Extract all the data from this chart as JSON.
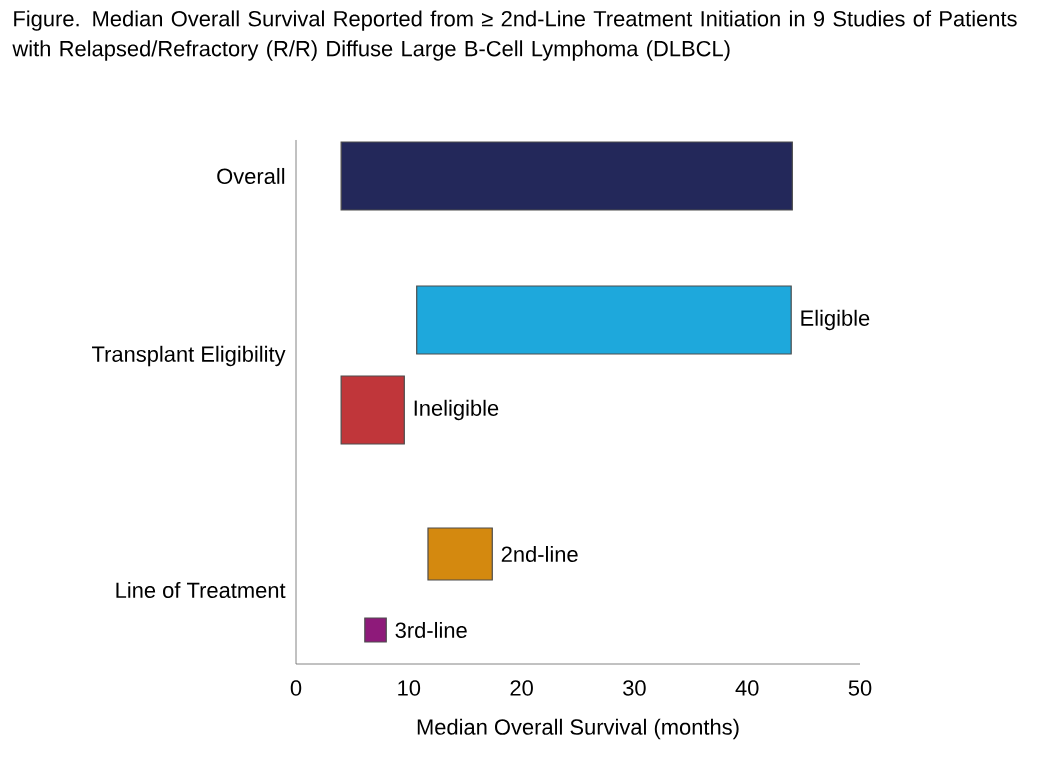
{
  "chart_data": {
    "type": "bar",
    "orientation": "horizontal",
    "title": "Figure. Median Overall Survival Reported from ≥ 2nd-Line Treatment Initiation in 9 Studies of Patients with Relapsed/Refractory (R/R) Diffuse Large B-Cell Lymphoma (DLBCL)",
    "xlabel": "Median Overall Survival (months)",
    "categories": [
      null,
      "Eligible",
      "Ineligible",
      "2nd-line",
      "3rd-line"
    ],
    "base": [
      4,
      10.7,
      4,
      11.7,
      6.1
    ],
    "values": [
      40,
      33.2,
      5.6,
      5.7,
      1.9
    ],
    "colors": [
      "#23285a",
      "#1ea8dc",
      "#c0363a",
      "#d4890f",
      "#8e1a7a"
    ],
    "annotations": [
      "Overall",
      "Transplant Eligibility",
      "Line of Treatment"
    ],
    "xlim": [
      0,
      50
    ],
    "xticks": [
      0,
      10,
      20,
      30,
      40,
      50
    ]
  }
}
